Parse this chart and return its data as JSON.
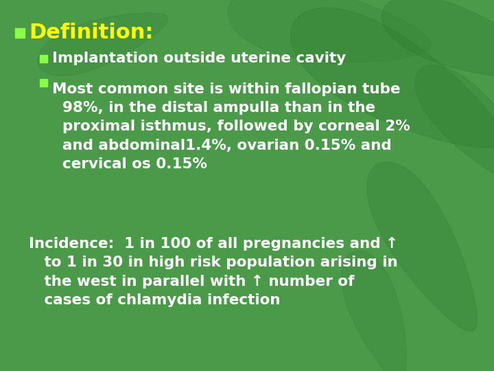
{
  "bg_color": "#4a9a4a",
  "bg_dark": "#3a7a3a",
  "title": "Definition:",
  "title_color": "#ffff00",
  "title_bullet_color": "#88ff44",
  "text_color": "#ffffff",
  "bullet_color": "#88ff44",
  "bullet1": "Implantation outside uterine cavity",
  "bullet2_line1": "Most common site is within fallopian tube",
  "bullet2_line2": "98%, in the distal ampulla than in the",
  "bullet2_line3": "proximal isthmus, followed by corneal 2%",
  "bullet2_line4": "and abdominal1.4%, ovarian 0.15% and",
  "bullet2_line5": "cervical os 0.15%",
  "incidence_line1": "Incidence:  1 in 100 of all pregnancies and ↑",
  "incidence_line2": "   to 1 in 30 in high risk population arising in",
  "incidence_line3": "   the west in parallel with ↑ number of",
  "incidence_line4": "   cases of chlamydia infection",
  "title_fontsize": 22,
  "body_fontsize": 15.5,
  "incidence_fontsize": 15.5
}
